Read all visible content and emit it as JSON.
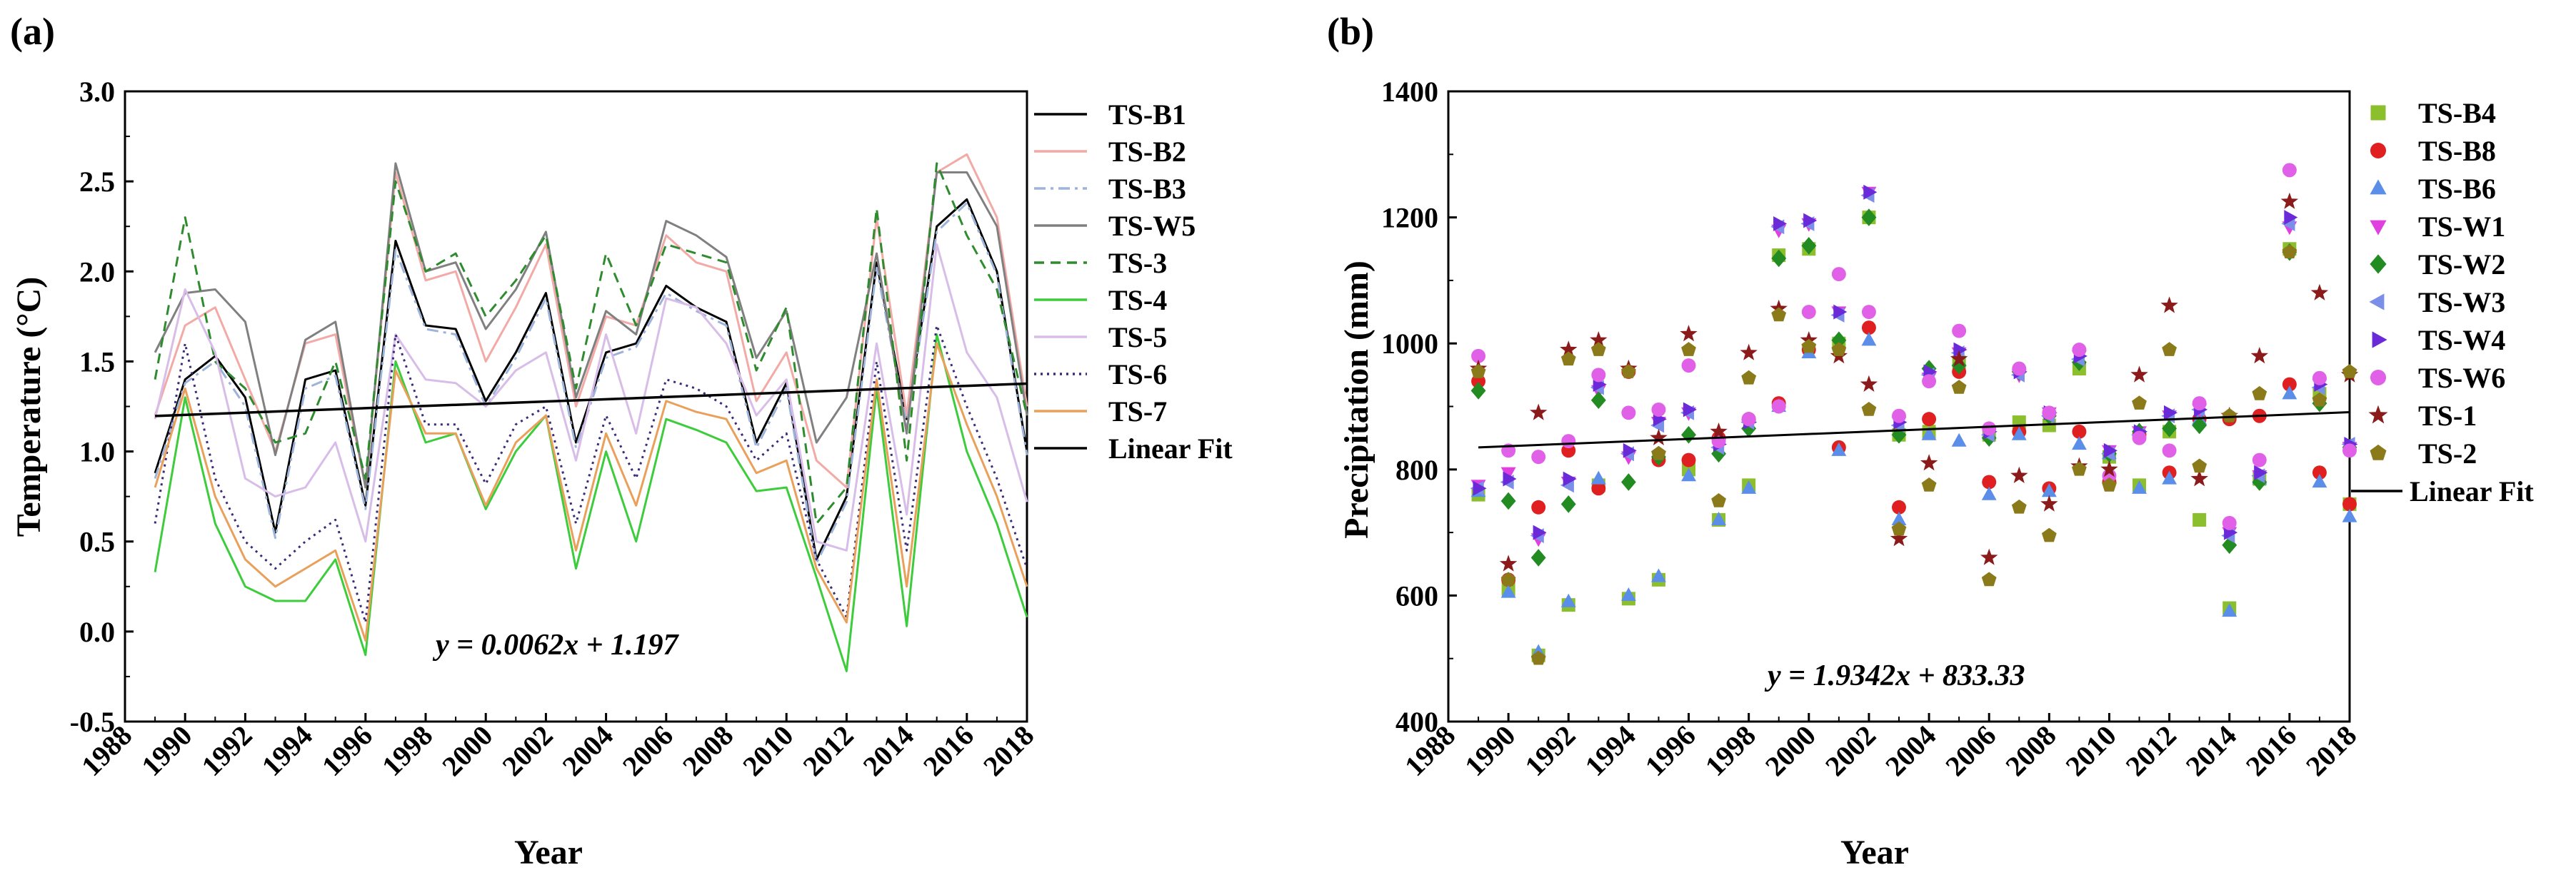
{
  "figure_labels": [
    "(a)",
    "(b)"
  ],
  "chart_data": [
    {
      "type": "line",
      "panel_label": "(a)",
      "title": "",
      "xlabel": "Year",
      "ylabel": "Temperature (°C)",
      "xlim": [
        1988,
        2018
      ],
      "ylim": [
        -0.5,
        3.0
      ],
      "x_ticks": [
        "1988",
        "1990",
        "1992",
        "1994",
        "1996",
        "1998",
        "2000",
        "2002",
        "2004",
        "2006",
        "2008",
        "2010",
        "2012",
        "2014",
        "2016",
        "2018"
      ],
      "y_ticks": [
        "-0.5",
        "0.0",
        "0.5",
        "1.0",
        "1.5",
        "2.0",
        "2.5",
        "3.0"
      ],
      "legend_position": "right",
      "x": [
        1989,
        1990,
        1991,
        1992,
        1993,
        1994,
        1995,
        1996,
        1997,
        1998,
        1999,
        2000,
        2001,
        2002,
        2003,
        2004,
        2005,
        2006,
        2007,
        2008,
        2009,
        2010,
        2011,
        2012,
        2013,
        2014,
        2015,
        2016,
        2017,
        2018
      ],
      "series": [
        {
          "name": "TS-B1",
          "color": "#000000",
          "dash": "solid",
          "values": [
            0.88,
            1.4,
            1.53,
            1.3,
            0.55,
            1.4,
            1.45,
            0.7,
            2.17,
            1.7,
            1.68,
            1.28,
            1.55,
            1.88,
            1.05,
            1.55,
            1.6,
            1.92,
            1.8,
            1.72,
            1.05,
            1.38,
            0.4,
            0.75,
            2.05,
            1.18,
            2.25,
            2.4,
            2.0,
            1.0
          ]
        },
        {
          "name": "TS-B2",
          "color": "#f2aaa6",
          "dash": "solid",
          "values": [
            1.2,
            1.7,
            1.8,
            1.4,
            1.0,
            1.6,
            1.65,
            0.8,
            2.55,
            1.95,
            2.0,
            1.5,
            1.8,
            2.15,
            1.25,
            1.75,
            1.7,
            2.2,
            2.05,
            2.0,
            1.28,
            1.55,
            0.95,
            0.8,
            2.3,
            1.2,
            2.55,
            2.65,
            2.3,
            1.25
          ]
        },
        {
          "name": "TS-B3",
          "color": "#9db3d9",
          "dash": "dashdot",
          "values": [
            0.85,
            1.38,
            1.5,
            1.25,
            0.52,
            1.35,
            1.42,
            0.68,
            2.12,
            1.68,
            1.65,
            1.25,
            1.52,
            1.85,
            1.02,
            1.52,
            1.58,
            1.88,
            1.78,
            1.7,
            1.02,
            1.35,
            0.38,
            0.72,
            2.02,
            1.15,
            2.22,
            2.38,
            1.98,
            0.98
          ]
        },
        {
          "name": "TS-W5",
          "color": "#808080",
          "dash": "solid",
          "values": [
            1.55,
            1.88,
            1.9,
            1.72,
            0.98,
            1.62,
            1.72,
            0.8,
            2.6,
            2.0,
            2.05,
            1.68,
            1.9,
            2.22,
            1.3,
            1.78,
            1.65,
            2.28,
            2.2,
            2.08,
            1.52,
            1.78,
            1.05,
            1.3,
            2.1,
            1.1,
            2.55,
            2.55,
            2.25,
            1.2
          ]
        },
        {
          "name": "TS-3",
          "color": "#2e8b2e",
          "dash": "dashed",
          "values": [
            1.4,
            2.3,
            1.5,
            1.35,
            1.05,
            1.1,
            1.5,
            0.85,
            2.5,
            2.0,
            2.1,
            1.75,
            1.95,
            2.2,
            1.35,
            2.1,
            1.7,
            2.15,
            2.1,
            2.05,
            1.45,
            1.8,
            0.6,
            0.8,
            2.35,
            0.95,
            2.6,
            2.2,
            1.9,
            1.2
          ]
        },
        {
          "name": "TS-4",
          "color": "#3ccc3c",
          "dash": "solid",
          "values": [
            0.33,
            1.3,
            0.6,
            0.25,
            0.17,
            0.17,
            0.4,
            -0.13,
            1.5,
            1.05,
            1.1,
            0.68,
            1.0,
            1.2,
            0.35,
            1.0,
            0.5,
            1.18,
            1.12,
            1.05,
            0.78,
            0.8,
            0.3,
            -0.22,
            1.35,
            0.03,
            1.65,
            1.0,
            0.6,
            0.08
          ]
        },
        {
          "name": "TS-5",
          "color": "#d7bde8",
          "dash": "solid",
          "values": [
            1.18,
            1.9,
            1.55,
            0.85,
            0.75,
            0.8,
            1.05,
            0.5,
            1.65,
            1.4,
            1.38,
            1.25,
            1.45,
            1.55,
            0.95,
            1.65,
            1.1,
            1.85,
            1.8,
            1.6,
            1.2,
            1.4,
            0.5,
            0.45,
            1.6,
            0.65,
            2.15,
            1.55,
            1.3,
            0.72
          ]
        },
        {
          "name": "TS-6",
          "color": "#3a2a7a",
          "dash": "dotted",
          "values": [
            0.6,
            1.6,
            0.85,
            0.5,
            0.35,
            0.5,
            0.62,
            0.05,
            1.65,
            1.15,
            1.15,
            0.82,
            1.15,
            1.25,
            0.6,
            1.2,
            0.85,
            1.4,
            1.35,
            1.25,
            0.95,
            1.1,
            0.4,
            0.08,
            1.5,
            0.45,
            1.7,
            1.25,
            0.85,
            0.35
          ]
        },
        {
          "name": "TS-7",
          "color": "#e9a05a",
          "dash": "solid",
          "values": [
            0.8,
            1.35,
            0.75,
            0.4,
            0.25,
            0.35,
            0.45,
            -0.05,
            1.45,
            1.1,
            1.1,
            0.7,
            1.05,
            1.2,
            0.45,
            1.1,
            0.7,
            1.28,
            1.22,
            1.18,
            0.88,
            0.95,
            0.35,
            0.05,
            1.4,
            0.25,
            1.6,
            1.15,
            0.75,
            0.25
          ]
        }
      ],
      "fit": {
        "name": "Linear Fit",
        "color": "#000000",
        "equation": "y = 0.0062x + 1.197",
        "start": [
          1989,
          1.197
        ],
        "end": [
          2018,
          1.377
        ]
      }
    },
    {
      "type": "scatter",
      "panel_label": "(b)",
      "title": "",
      "xlabel": "Year",
      "ylabel": "Precipitation (mm)",
      "xlim": [
        1988,
        2018
      ],
      "ylim": [
        400,
        1400
      ],
      "x_ticks": [
        "1988",
        "1990",
        "1992",
        "1994",
        "1996",
        "1998",
        "2000",
        "2002",
        "2004",
        "2006",
        "2008",
        "2010",
        "2012",
        "2014",
        "2016",
        "2018"
      ],
      "y_ticks": [
        "400",
        "600",
        "800",
        "1000",
        "1200",
        "1400"
      ],
      "legend_position": "right",
      "x": [
        1989,
        1990,
        1991,
        1992,
        1993,
        1994,
        1995,
        1996,
        1997,
        1998,
        1999,
        2000,
        2001,
        2002,
        2003,
        2004,
        2005,
        2006,
        2007,
        2008,
        2009,
        2010,
        2011,
        2012,
        2013,
        2014,
        2015,
        2016,
        2017,
        2018
      ],
      "series": [
        {
          "name": "TS-B4",
          "color": "#8bbf2e",
          "marker": "square",
          "values": [
            760,
            610,
            505,
            585,
            775,
            595,
            625,
            800,
            720,
            775,
            1140,
            1150,
            1000,
            1200,
            855,
            860,
            970,
            855,
            875,
            870,
            960,
            820,
            775,
            860,
            720,
            580,
            785,
            1150,
            920,
            745
          ]
        },
        {
          "name": "TS-B8",
          "color": "#e02020",
          "marker": "circle",
          "values": [
            940,
            625,
            740,
            830,
            770,
            955,
            815,
            815,
            850,
            880,
            905,
            990,
            835,
            1025,
            740,
            880,
            955,
            780,
            860,
            770,
            860,
            780,
            855,
            795,
            880,
            880,
            885,
            935,
            795,
            745
          ]
        },
        {
          "name": "TS-B6",
          "color": "#5b8ee8",
          "marker": "triangle-up",
          "values": [
            765,
            605,
            510,
            590,
            785,
            600,
            630,
            790,
            720,
            770,
            900,
            985,
            830,
            1005,
            720,
            855,
            845,
            760,
            855,
            765,
            840,
            825,
            770,
            785,
            880,
            575,
            785,
            920,
            780,
            725
          ]
        },
        {
          "name": "TS-W1",
          "color": "#e040e0",
          "marker": "triangle-down",
          "values": [
            775,
            795,
            690,
            780,
            925,
            820,
            875,
            890,
            840,
            870,
            1180,
            1190,
            1050,
            1240,
            875,
            945,
            985,
            860,
            950,
            890,
            980,
            830,
            860,
            885,
            895,
            700,
            790,
            1185,
            935,
            835
          ]
        },
        {
          "name": "TS-W2",
          "color": "#228b22",
          "marker": "diamond",
          "values": [
            925,
            750,
            660,
            745,
            910,
            780,
            820,
            855,
            825,
            865,
            1135,
            1155,
            1005,
            1200,
            855,
            960,
            965,
            850,
            955,
            885,
            970,
            825,
            860,
            865,
            870,
            680,
            780,
            1145,
            905,
            835
          ]
        },
        {
          "name": "TS-W3",
          "color": "#7b8ee8",
          "marker": "triangle-left",
          "values": [
            770,
            780,
            695,
            775,
            930,
            825,
            870,
            890,
            835,
            875,
            1185,
            1190,
            1045,
            1235,
            870,
            950,
            985,
            855,
            950,
            885,
            975,
            825,
            855,
            885,
            895,
            695,
            790,
            1190,
            930,
            840
          ]
        },
        {
          "name": "TS-W4",
          "color": "#6a2ad8",
          "marker": "triangle-right",
          "values": [
            770,
            785,
            700,
            785,
            935,
            830,
            880,
            895,
            840,
            875,
            1190,
            1195,
            1050,
            1240,
            875,
            955,
            990,
            860,
            955,
            890,
            980,
            830,
            860,
            890,
            895,
            700,
            795,
            1200,
            935,
            840
          ]
        },
        {
          "name": "TS-W6",
          "color": "#e060e8",
          "marker": "circle",
          "values": [
            980,
            830,
            820,
            845,
            950,
            890,
            895,
            965,
            845,
            880,
            900,
            1050,
            1110,
            1050,
            885,
            940,
            1020,
            865,
            960,
            890,
            990,
            790,
            850,
            830,
            905,
            715,
            815,
            1275,
            945,
            830
          ]
        },
        {
          "name": "TS-1",
          "color": "#8b1a1a",
          "marker": "star",
          "values": [
            960,
            650,
            890,
            990,
            1005,
            960,
            850,
            1015,
            860,
            985,
            1055,
            1005,
            980,
            935,
            690,
            810,
            975,
            660,
            790,
            745,
            805,
            800,
            950,
            1060,
            785,
            885,
            980,
            1225,
            1080,
            950
          ]
        },
        {
          "name": "TS-2",
          "color": "#8b7a1a",
          "marker": "pentagon",
          "values": [
            955,
            625,
            500,
            975,
            990,
            955,
            825,
            990,
            750,
            945,
            1045,
            995,
            990,
            895,
            705,
            775,
            930,
            625,
            740,
            695,
            800,
            775,
            905,
            990,
            805,
            885,
            920,
            1145,
            910,
            955
          ]
        }
      ],
      "fit": {
        "name": "Linear Fit",
        "color": "#000000",
        "equation": "y = 1.9342x + 833.33",
        "start": [
          1989,
          835
        ],
        "end": [
          2018,
          891
        ]
      }
    }
  ]
}
